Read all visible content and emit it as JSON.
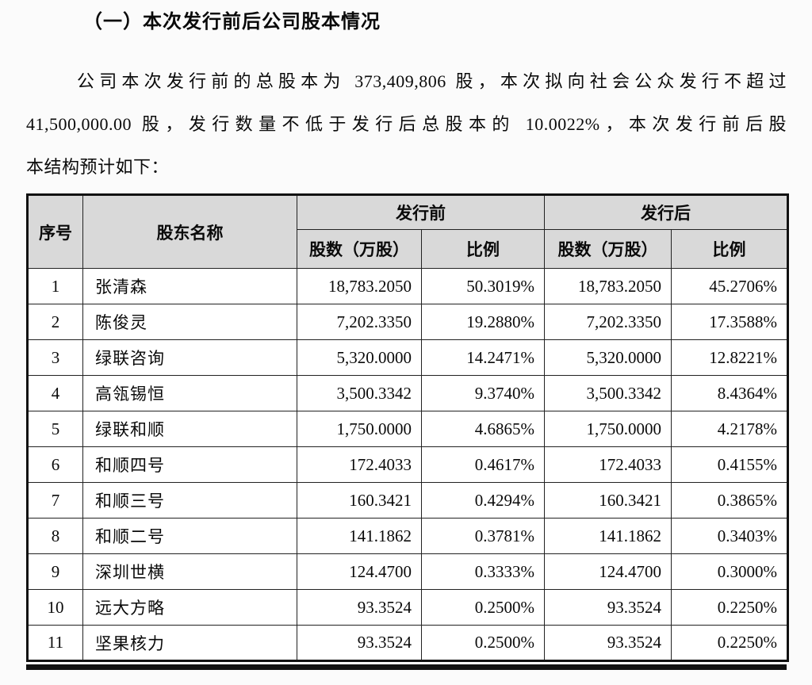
{
  "page": {
    "heading": "（一）本次发行前后公司股本情况",
    "intro_lines": [
      "公司本次发行前的总股本为 373,409,806 股，本次拟向社会公众发行不超过",
      "41,500,000.00 股，发行数量不低于发行后总股本的 10.0022%，本次发行前后股",
      "本结构预计如下："
    ]
  },
  "table": {
    "header": {
      "col_no": "序号",
      "col_name": "股东名称",
      "group_before": "发行前",
      "group_after": "发行后",
      "col_shares": "股数（万股）",
      "col_ratio": "比例"
    },
    "rows": [
      {
        "no": "1",
        "name": "张清森",
        "shares_before": "18,783.2050",
        "ratio_before": "50.3019%",
        "shares_after": "18,783.2050",
        "ratio_after": "45.2706%"
      },
      {
        "no": "2",
        "name": "陈俊灵",
        "shares_before": "7,202.3350",
        "ratio_before": "19.2880%",
        "shares_after": "7,202.3350",
        "ratio_after": "17.3588%"
      },
      {
        "no": "3",
        "name": "绿联咨询",
        "shares_before": "5,320.0000",
        "ratio_before": "14.2471%",
        "shares_after": "5,320.0000",
        "ratio_after": "12.8221%"
      },
      {
        "no": "4",
        "name": "高瓴锡恒",
        "shares_before": "3,500.3342",
        "ratio_before": "9.3740%",
        "shares_after": "3,500.3342",
        "ratio_after": "8.4364%"
      },
      {
        "no": "5",
        "name": "绿联和顺",
        "shares_before": "1,750.0000",
        "ratio_before": "4.6865%",
        "shares_after": "1,750.0000",
        "ratio_after": "4.2178%"
      },
      {
        "no": "6",
        "name": "和顺四号",
        "shares_before": "172.4033",
        "ratio_before": "0.4617%",
        "shares_after": "172.4033",
        "ratio_after": "0.4155%"
      },
      {
        "no": "7",
        "name": "和顺三号",
        "shares_before": "160.3421",
        "ratio_before": "0.4294%",
        "shares_after": "160.3421",
        "ratio_after": "0.3865%"
      },
      {
        "no": "8",
        "name": "和顺二号",
        "shares_before": "141.1862",
        "ratio_before": "0.3781%",
        "shares_after": "141.1862",
        "ratio_after": "0.3403%"
      },
      {
        "no": "9",
        "name": "深圳世横",
        "shares_before": "124.4700",
        "ratio_before": "0.3333%",
        "shares_after": "124.4700",
        "ratio_after": "0.3000%"
      },
      {
        "no": "10",
        "name": "远大方略",
        "shares_before": "93.3524",
        "ratio_before": "0.2500%",
        "shares_after": "93.3524",
        "ratio_after": "0.2250%"
      },
      {
        "no": "11",
        "name": "坚果核力",
        "shares_before": "93.3524",
        "ratio_before": "0.2500%",
        "shares_after": "93.3524",
        "ratio_after": "0.2250%"
      }
    ]
  },
  "colors": {
    "header_bg": "#d9d9d9",
    "border": "#111111",
    "page_bg": "#fbfbfb"
  }
}
